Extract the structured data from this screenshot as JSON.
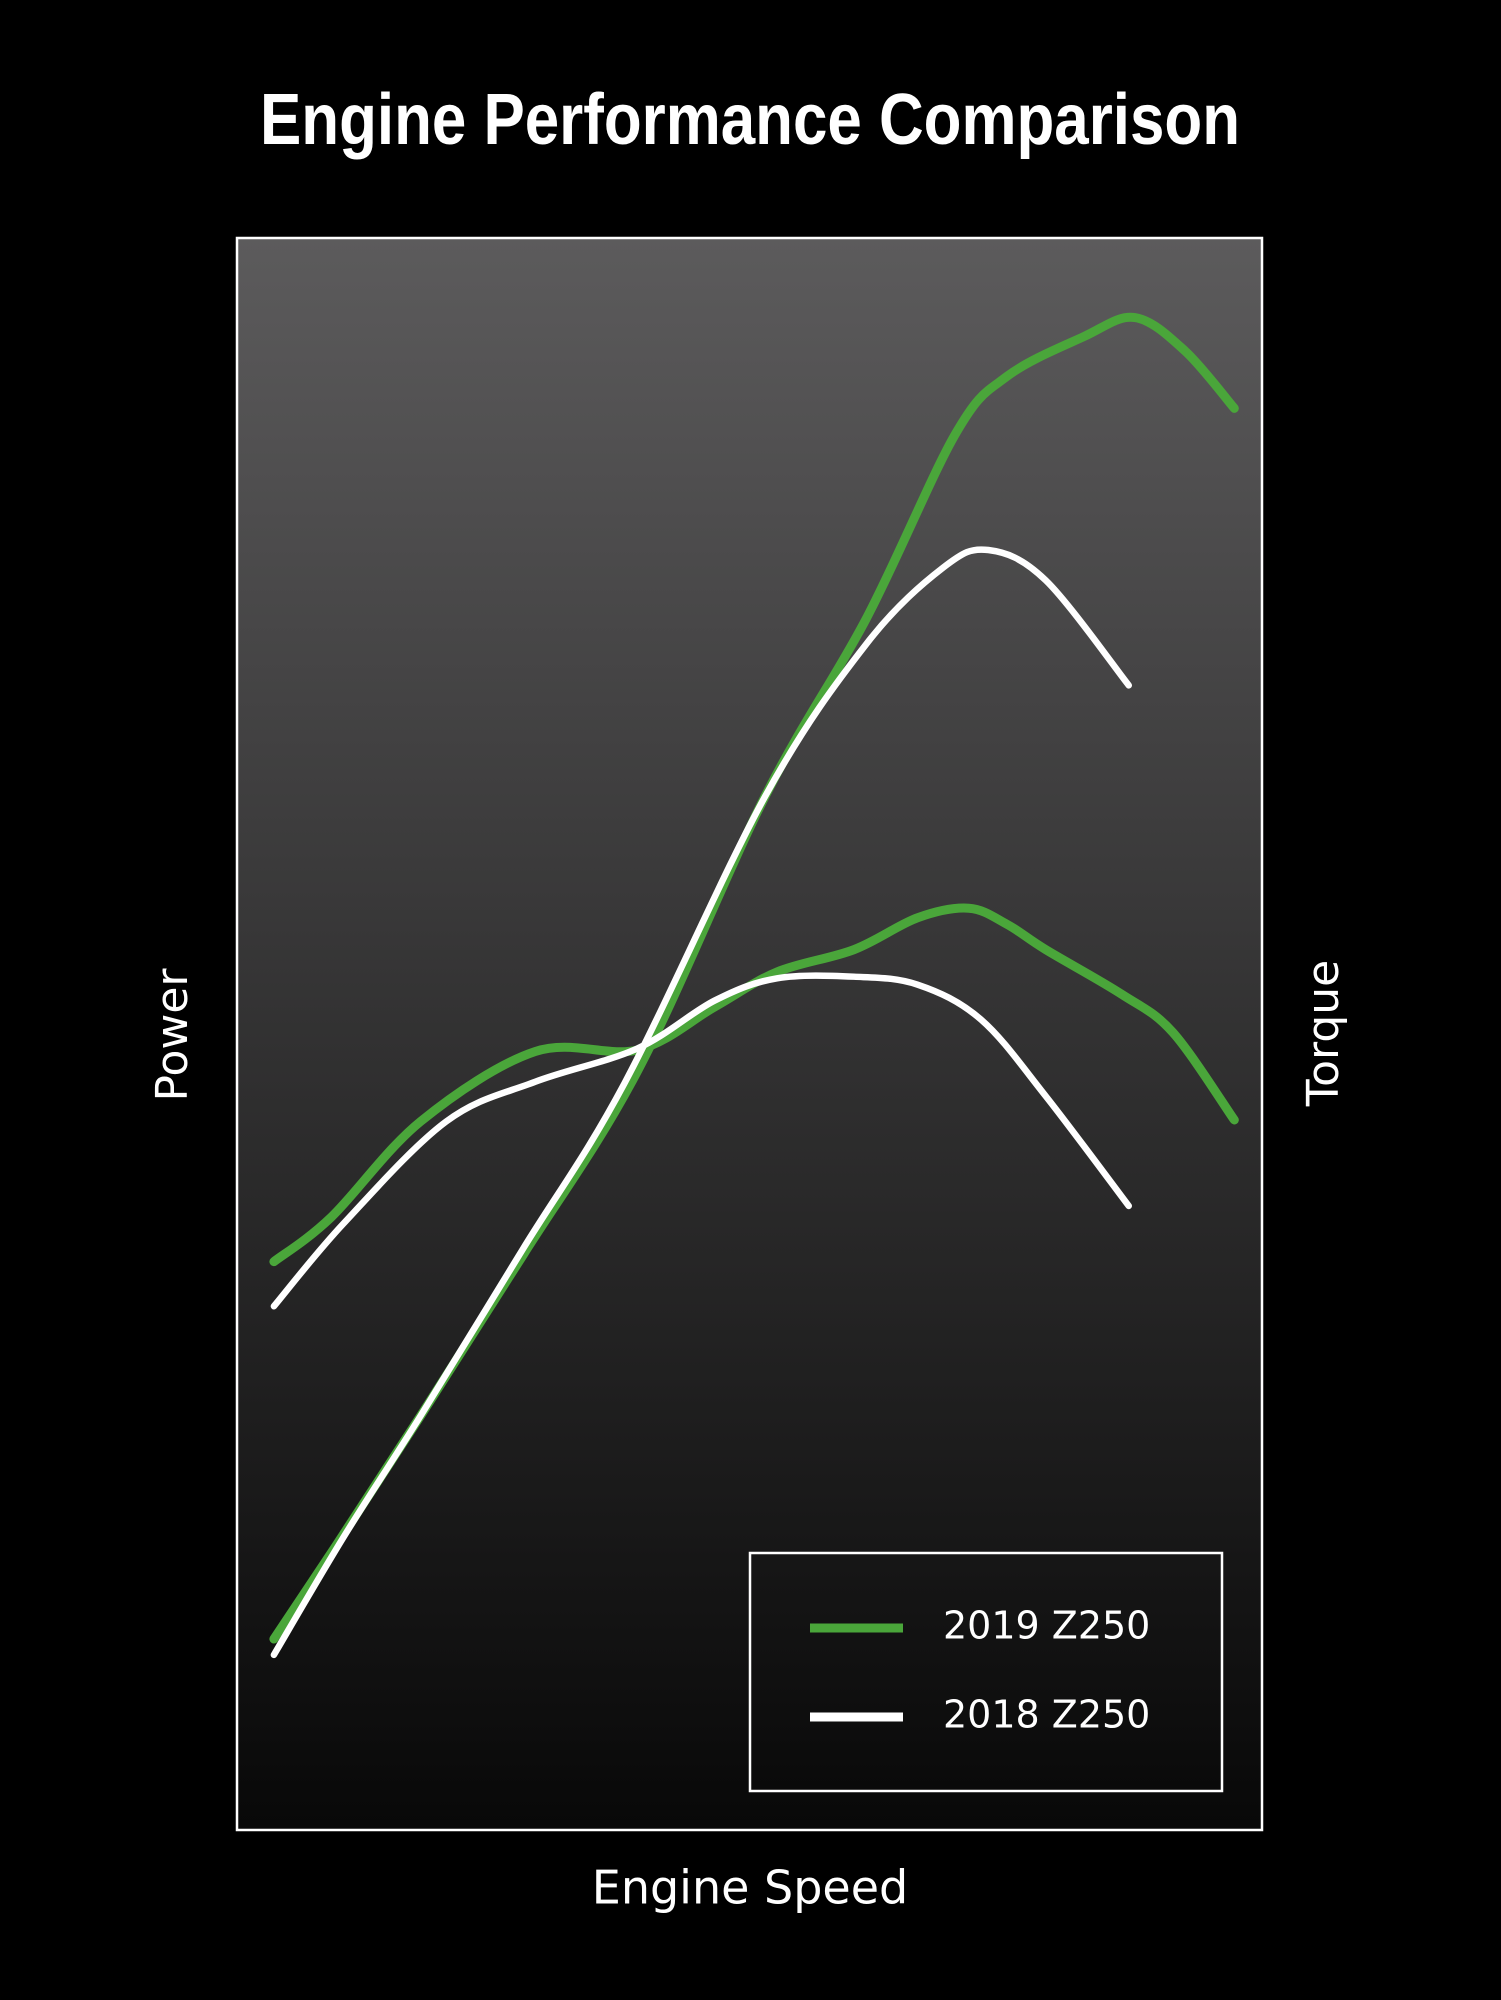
{
  "chart_data": {
    "type": "line",
    "title": "Engine Performance Comparison",
    "x_label": "Engine Speed",
    "y_label": "Power",
    "y2_label": "Torque",
    "xlim": [
      0,
      100
    ],
    "ylim": [
      0,
      100
    ],
    "y2lim": [
      0,
      100
    ],
    "legend": "bottom-right",
    "series": [
      {
        "name": "2019 Z250",
        "color": "#4aa63a",
        "curves": [
          {
            "x": [
              3.6,
              9.8,
              17.9,
              27.9,
              39.1,
              51.5,
              61.4,
              70.1,
              75.1,
              82.6,
              87.6,
              92.5,
              97.3
            ],
            "values": [
              12.0,
              18.0,
              26.0,
              36.1,
              47.7,
              64.9,
              76.1,
              87.7,
              91.3,
              93.8,
              95.0,
              92.9,
              89.3
            ]
          },
          {
            "axis": "y2",
            "x": [
              3.6,
              9.2,
              17.9,
              29.1,
              39.1,
              46.6,
              52.7,
              60.2,
              66.4,
              71.4,
              75.1,
              78.9,
              86.3,
              91.3,
              97.3
            ],
            "values": [
              35.7,
              38.5,
              44.5,
              48.9,
              49.0,
              51.7,
              53.9,
              55.3,
              57.3,
              57.9,
              56.9,
              55.3,
              52.5,
              50.1,
              44.6
            ]
          }
        ]
      },
      {
        "name": "2018 Z250",
        "color": "#ffffff",
        "curves": [
          {
            "x": [
              3.6,
              10.4,
              17.9,
              27.9,
              37.8,
              51.5,
              61.4,
              68.9,
              73.3,
              78.9,
              87.0
            ],
            "values": [
              11.0,
              18.4,
              26.0,
              36.5,
              46.9,
              64.9,
              74.5,
              79.3,
              80.4,
              78.5,
              71.9
            ]
          },
          {
            "axis": "y2",
            "x": [
              3.6,
              10.4,
              20.4,
              29.1,
              39.1,
              46.6,
              52.7,
              60.2,
              66.4,
              72.6,
              78.9,
              87.0
            ],
            "values": [
              32.9,
              38.1,
              44.5,
              47.0,
              49.1,
              52.1,
              53.5,
              53.6,
              53.1,
              50.9,
              46.1,
              39.2
            ]
          }
        ]
      }
    ]
  }
}
